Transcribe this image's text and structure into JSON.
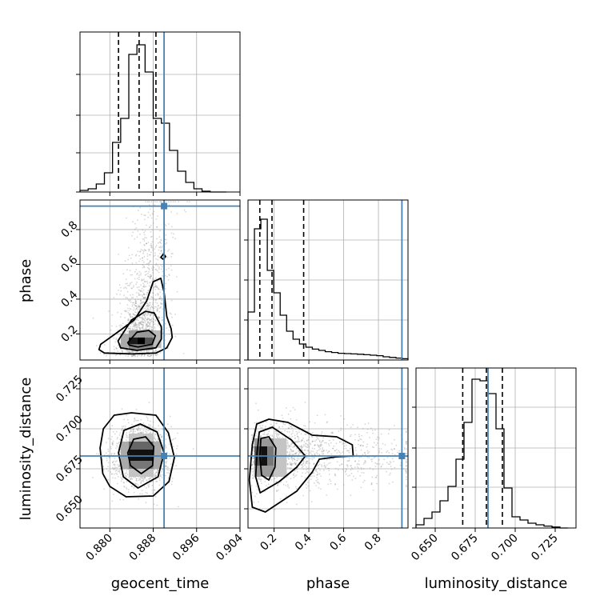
{
  "chart_data": {
    "type": "corner",
    "parameters": [
      "geocent_time",
      "phase",
      "luminosity_distance"
    ],
    "truths": {
      "geocent_time": 0.89,
      "phase": 0.935,
      "luminosity_distance": 0.683
    },
    "colors": {
      "truth": "#4682b4",
      "line": "#000000",
      "grid": "#b0b0b0",
      "samples": "#8c8c8c"
    },
    "grid": true,
    "panels": {
      "geocent_time_hist": {
        "xlim": [
          0.8745,
          0.904
        ],
        "ylim": [
          0,
          1.0
        ],
        "bin_edges": [
          0.8745,
          0.876,
          0.8775,
          0.879,
          0.8805,
          0.882,
          0.8835,
          0.885,
          0.8865,
          0.888,
          0.8895,
          0.891,
          0.8925,
          0.894,
          0.8955,
          0.897,
          0.8985,
          0.9,
          0.9015
        ],
        "density": [
          0.01,
          0.02,
          0.05,
          0.12,
          0.31,
          0.46,
          0.86,
          0.92,
          0.75,
          0.46,
          0.43,
          0.26,
          0.13,
          0.06,
          0.02,
          0.005,
          0.0,
          0.0
        ],
        "quantiles": [
          0.8816,
          0.8854,
          0.8885
        ]
      },
      "phase_hist": {
        "xlim": [
          0.05,
          0.97
        ],
        "ylim": [
          0,
          1.0
        ],
        "bin_edges": [
          0.05,
          0.087,
          0.124,
          0.161,
          0.198,
          0.235,
          0.272,
          0.309,
          0.346,
          0.383,
          0.42,
          0.457,
          0.494,
          0.531,
          0.568,
          0.605,
          0.642,
          0.679,
          0.716,
          0.753,
          0.79,
          0.827,
          0.864,
          0.901,
          0.938,
          0.97
        ],
        "density": [
          0.3,
          0.82,
          0.88,
          0.56,
          0.42,
          0.28,
          0.18,
          0.13,
          0.1,
          0.08,
          0.068,
          0.06,
          0.052,
          0.047,
          0.042,
          0.04,
          0.038,
          0.036,
          0.033,
          0.03,
          0.027,
          0.02,
          0.016,
          0.012,
          0.008
        ],
        "quantiles": [
          0.118,
          0.188,
          0.37
        ]
      },
      "luminosity_distance_hist": {
        "xlim": [
          0.638,
          0.738
        ],
        "ylim": [
          0,
          1.0
        ],
        "bin_edges": [
          0.638,
          0.643,
          0.648,
          0.653,
          0.658,
          0.663,
          0.668,
          0.673,
          0.678,
          0.683,
          0.688,
          0.693,
          0.698,
          0.703,
          0.708,
          0.713,
          0.718,
          0.723,
          0.728,
          0.733
        ],
        "density": [
          0.02,
          0.06,
          0.1,
          0.17,
          0.26,
          0.43,
          0.66,
          0.93,
          0.92,
          0.84,
          0.62,
          0.25,
          0.07,
          0.05,
          0.03,
          0.02,
          0.012,
          0.006,
          0.0
        ],
        "quantiles": [
          0.6672,
          0.682,
          0.692
        ]
      },
      "phase_vs_geocent_time": {
        "xlim": [
          0.8745,
          0.904
        ],
        "ylim": [
          0.05,
          0.97
        ],
        "peak": {
          "x": 0.885,
          "y": 0.16
        },
        "contours": [
          [
            [
              0.8783,
              0.14
            ],
            [
              0.881,
              0.2
            ],
            [
              0.8845,
              0.28
            ],
            [
              0.8868,
              0.39
            ],
            [
              0.888,
              0.5
            ],
            [
              0.8894,
              0.52
            ],
            [
              0.89,
              0.44
            ],
            [
              0.8905,
              0.3
            ],
            [
              0.8913,
              0.23
            ],
            [
              0.8915,
              0.18
            ],
            [
              0.8905,
              0.12
            ],
            [
              0.8885,
              0.09
            ],
            [
              0.884,
              0.085
            ],
            [
              0.879,
              0.09
            ],
            [
              0.878,
              0.11
            ]
          ],
          [
            [
              0.8815,
              0.16
            ],
            [
              0.884,
              0.28
            ],
            [
              0.8866,
              0.33
            ],
            [
              0.8882,
              0.32
            ],
            [
              0.8895,
              0.24
            ],
            [
              0.8895,
              0.17
            ],
            [
              0.8885,
              0.12
            ],
            [
              0.885,
              0.105
            ],
            [
              0.882,
              0.12
            ]
          ],
          [
            [
              0.8833,
              0.15
            ],
            [
              0.885,
              0.21
            ],
            [
              0.8872,
              0.22
            ],
            [
              0.8884,
              0.19
            ],
            [
              0.8878,
              0.14
            ],
            [
              0.8852,
              0.125
            ],
            [
              0.8836,
              0.135
            ]
          ],
          [
            [
              0.8894,
              0.64
            ],
            [
              0.8899,
              0.66
            ],
            [
              0.8903,
              0.645
            ],
            [
              0.8898,
              0.63
            ]
          ]
        ]
      },
      "luminosity_distance_vs_geocent_time": {
        "xlim": [
          0.8745,
          0.904
        ],
        "ylim": [
          0.638,
          0.738
        ],
        "peak": {
          "x": 0.8855,
          "y": 0.6835
        },
        "contours": [
          [
            [
              0.8788,
              0.7
            ],
            [
              0.8808,
              0.7085
            ],
            [
              0.884,
              0.71
            ],
            [
              0.8885,
              0.7085
            ],
            [
              0.8908,
              0.6975
            ],
            [
              0.8919,
              0.682
            ],
            [
              0.8909,
              0.667
            ],
            [
              0.888,
              0.658
            ],
            [
              0.883,
              0.6575
            ],
            [
              0.88,
              0.664
            ],
            [
              0.8787,
              0.672
            ],
            [
              0.8782,
              0.688
            ]
          ],
          [
            [
              0.8816,
              0.685
            ],
            [
              0.8826,
              0.699
            ],
            [
              0.8856,
              0.703
            ],
            [
              0.8887,
              0.698
            ],
            [
              0.89,
              0.685
            ],
            [
              0.8889,
              0.67
            ],
            [
              0.8852,
              0.663
            ],
            [
              0.8825,
              0.67
            ]
          ],
          [
            [
              0.8833,
              0.685
            ],
            [
              0.8844,
              0.6935
            ],
            [
              0.8866,
              0.695
            ],
            [
              0.8881,
              0.689
            ],
            [
              0.8879,
              0.677
            ],
            [
              0.8858,
              0.672
            ],
            [
              0.8838,
              0.677
            ]
          ]
        ]
      },
      "luminosity_distance_vs_phase": {
        "xlim": [
          0.05,
          0.97
        ],
        "ylim": [
          0.638,
          0.738
        ],
        "peak": {
          "x": 0.14,
          "y": 0.683
        },
        "contours": [
          [
            [
              0.075,
              0.69
            ],
            [
              0.1,
              0.703
            ],
            [
              0.17,
              0.706
            ],
            [
              0.28,
              0.704
            ],
            [
              0.42,
              0.696
            ],
            [
              0.56,
              0.695
            ],
            [
              0.65,
              0.69
            ],
            [
              0.655,
              0.683
            ],
            [
              0.56,
              0.6825
            ],
            [
              0.46,
              0.681
            ],
            [
              0.42,
              0.673
            ],
            [
              0.33,
              0.661
            ],
            [
              0.15,
              0.648
            ],
            [
              0.075,
              0.651
            ],
            [
              0.058,
              0.668
            ]
          ],
          [
            [
              0.102,
              0.685
            ],
            [
              0.115,
              0.698
            ],
            [
              0.19,
              0.701
            ],
            [
              0.3,
              0.693
            ],
            [
              0.38,
              0.683
            ],
            [
              0.33,
              0.676
            ],
            [
              0.23,
              0.667
            ],
            [
              0.12,
              0.66
            ],
            [
              0.094,
              0.67
            ]
          ],
          [
            [
              0.118,
              0.683
            ],
            [
              0.124,
              0.694
            ],
            [
              0.17,
              0.695
            ],
            [
              0.21,
              0.688
            ],
            [
              0.205,
              0.676
            ],
            [
              0.17,
              0.668
            ],
            [
              0.128,
              0.671
            ]
          ]
        ]
      }
    },
    "ticks": {
      "geocent_time": [
        "0.880",
        "0.888",
        "0.896",
        "0.904"
      ],
      "phase": [
        "0.2",
        "0.4",
        "0.6",
        "0.8"
      ],
      "luminosity_distance": [
        "0.650",
        "0.675",
        "0.700",
        "0.725"
      ]
    },
    "tick_values": {
      "geocent_time": [
        0.88,
        0.888,
        0.896,
        0.904
      ],
      "phase": [
        0.2,
        0.4,
        0.6,
        0.8
      ],
      "luminosity_distance": [
        0.65,
        0.675,
        0.7,
        0.725
      ]
    },
    "xlabels": [
      "geocent_time",
      "phase",
      "luminosity_distance"
    ],
    "ylabels": [
      "",
      "phase",
      "luminosity_distance"
    ]
  }
}
